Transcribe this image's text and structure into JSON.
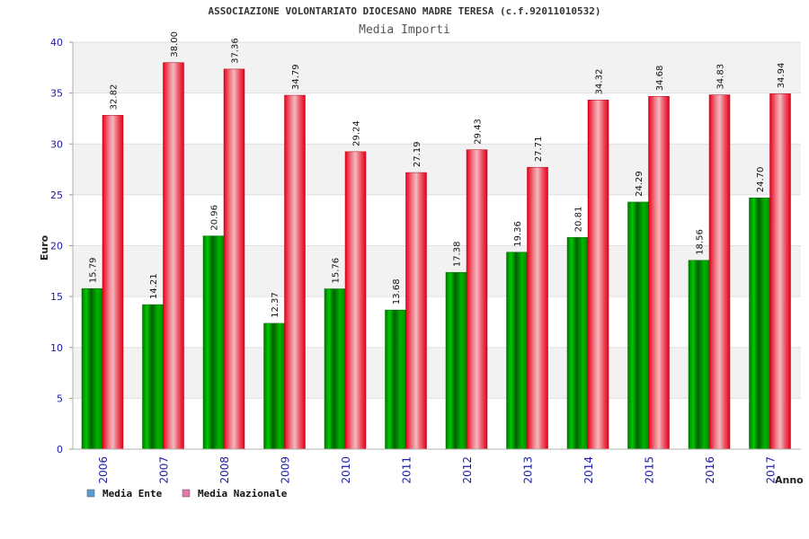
{
  "chart_data": {
    "type": "bar",
    "title": "ASSOCIAZIONE VOLONTARIATO DIOCESANO MADRE TERESA (c.f.92011010532)",
    "subtitle": "Media Importi",
    "xlabel": "Anno",
    "ylabel": "Euro",
    "ylim": [
      0,
      40
    ],
    "yticks": [
      0,
      5,
      10,
      15,
      20,
      25,
      30,
      35,
      40
    ],
    "categories": [
      "2006",
      "2007",
      "2008",
      "2009",
      "2010",
      "2011",
      "2012",
      "2013",
      "2014",
      "2015",
      "2016",
      "2017"
    ],
    "series": [
      {
        "name": "Media Ente",
        "color": "#00a000",
        "legend_color": "#5b9bd5",
        "values": [
          15.79,
          14.21,
          20.96,
          12.37,
          15.76,
          13.68,
          17.38,
          19.36,
          20.81,
          24.29,
          18.56,
          24.7
        ],
        "labels": [
          "15.79",
          "14.21",
          "20.96",
          "12.37",
          "15.76",
          "13.68",
          "17.38",
          "19.36",
          "20.81",
          "24.29",
          "18.56",
          "24.70"
        ]
      },
      {
        "name": "Media Nazionale",
        "color": "#e8001c",
        "legend_color": "#e377a8",
        "values": [
          32.82,
          38.0,
          37.36,
          34.79,
          29.24,
          27.19,
          29.43,
          27.71,
          34.32,
          34.68,
          34.83,
          34.94
        ],
        "labels": [
          "32.82",
          "38.00",
          "37.36",
          "34.79",
          "29.24",
          "27.19",
          "29.43",
          "27.71",
          "34.32",
          "34.68",
          "34.83",
          "34.94"
        ]
      }
    ],
    "grid": true,
    "legend_position": "bottom-left"
  }
}
